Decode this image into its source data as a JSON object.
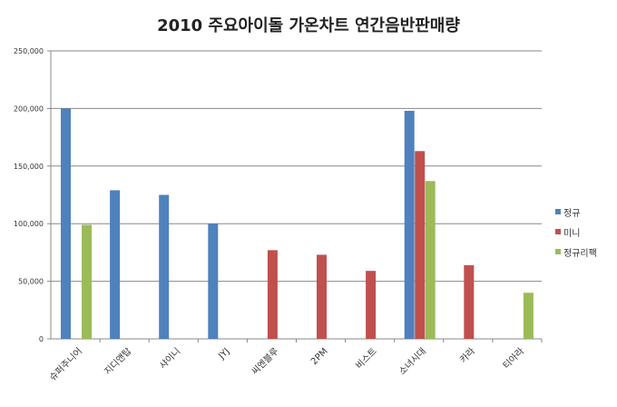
{
  "chart_data": {
    "type": "bar",
    "title": "2010 주요아이돌 가온차트 연간음반판매량",
    "categories": [
      "슈퍼주니어",
      "지디앤탑",
      "샤이니",
      "JYJ",
      "씨엔블루",
      "2PM",
      "비스트",
      "소녀시대",
      "카라",
      "티아라"
    ],
    "series": [
      {
        "name": "정규",
        "color": "#4F81BD",
        "values": [
          200000,
          129000,
          125000,
          100000,
          null,
          null,
          null,
          198000,
          null,
          null
        ]
      },
      {
        "name": "미니",
        "color": "#C0504D",
        "values": [
          null,
          null,
          null,
          null,
          77000,
          73000,
          59000,
          163000,
          64000,
          null
        ]
      },
      {
        "name": "정규리팩",
        "color": "#9BBB59",
        "values": [
          99000,
          null,
          null,
          null,
          null,
          null,
          null,
          137000,
          null,
          40000
        ]
      }
    ],
    "ylim": [
      0,
      250000
    ],
    "yticks": [
      "0",
      "50,000",
      "100,000",
      "150,000",
      "200,000",
      "250,000"
    ],
    "grid": true,
    "legend": "right"
  }
}
